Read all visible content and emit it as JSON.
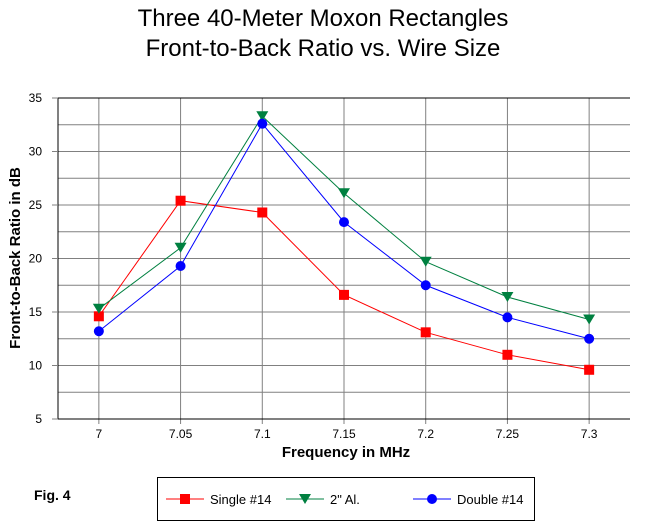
{
  "chart_data": {
    "type": "line",
    "title": [
      "Three 40-Meter Moxon Rectangles",
      "Front-to-Back Ratio vs. Wire Size"
    ],
    "xlabel": "Frequency in MHz",
    "ylabel": "Front-to-Back Ratio in dB",
    "x": [
      7,
      7.05,
      7.1,
      7.15,
      7.2,
      7.25,
      7.3
    ],
    "x_tick_labels": [
      "7",
      "7.05",
      "7.1",
      "7.15",
      "7.2",
      "7.25",
      "7.3"
    ],
    "xlim": [
      6.975,
      7.325
    ],
    "ylim": [
      5,
      35
    ],
    "y_ticks": [
      5,
      10,
      15,
      20,
      25,
      30,
      35
    ],
    "y_tick_labels": [
      "5",
      "10",
      "15",
      "20",
      "25",
      "30",
      "35"
    ],
    "y_minor_grid_step": 2.5,
    "grid": true,
    "legend_position": "bottom",
    "series": [
      {
        "name": "Single #14",
        "color": "#ff0000",
        "marker": "square",
        "values": [
          14.6,
          25.4,
          24.3,
          16.6,
          13.1,
          11.0,
          9.6
        ]
      },
      {
        "name": "2\" Al.",
        "color": "#008040",
        "marker": "triangle-down",
        "values": [
          15.3,
          21.0,
          33.3,
          26.1,
          19.7,
          16.4,
          14.3
        ]
      },
      {
        "name": "Double #14",
        "color": "#0000ff",
        "marker": "circle",
        "values": [
          13.2,
          19.3,
          32.6,
          23.4,
          17.5,
          14.5,
          12.5
        ]
      }
    ]
  },
  "figure_label": "Fig. 4"
}
